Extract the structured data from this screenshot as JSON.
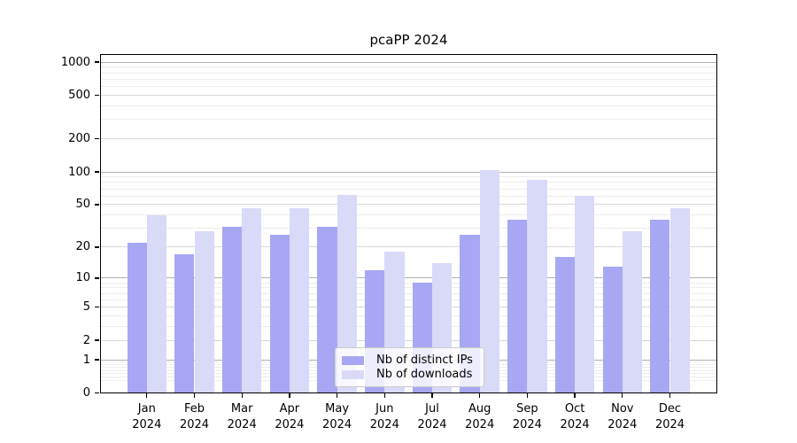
{
  "title": "pcaPP 2024",
  "legend": {
    "items": [
      {
        "label": "Nb of distinct IPs",
        "color": "#a7a7f4"
      },
      {
        "label": "Nb of downloads",
        "color": "#d9d9f8"
      }
    ]
  },
  "colors": {
    "bar_distinct_ips": "#a7a7f4",
    "bar_downloads": "#d9d9f8",
    "grid_major": "#b0b0b0",
    "grid_mid": "#d9d9d9",
    "grid_minor": "#ededed",
    "axis": "#000000"
  },
  "chart_data": {
    "type": "bar",
    "title": "pcaPP 2024",
    "categories": [
      "Jan 2024",
      "Feb 2024",
      "Mar 2024",
      "Apr 2024",
      "May 2024",
      "Jun 2024",
      "Jul 2024",
      "Aug 2024",
      "Sep 2024",
      "Oct 2024",
      "Nov 2024",
      "Dec 2024"
    ],
    "series": [
      {
        "name": "Nb of distinct IPs",
        "color": "#a7a7f4",
        "values": [
          22,
          17,
          31,
          26,
          31,
          12,
          9,
          26,
          36,
          16,
          13,
          36
        ]
      },
      {
        "name": "Nb of downloads",
        "color": "#d9d9f8",
        "values": [
          40,
          28,
          46,
          46,
          62,
          18,
          14,
          103,
          85,
          60,
          28,
          46
        ]
      }
    ],
    "xlabel": "",
    "ylabel": "",
    "y_scale": "log1p",
    "ylim": [
      0,
      1000
    ],
    "y_ticks": [
      0,
      1,
      2,
      5,
      10,
      20,
      50,
      100,
      200,
      500,
      1000
    ],
    "grid": true,
    "legend_position": "bottom-center"
  }
}
